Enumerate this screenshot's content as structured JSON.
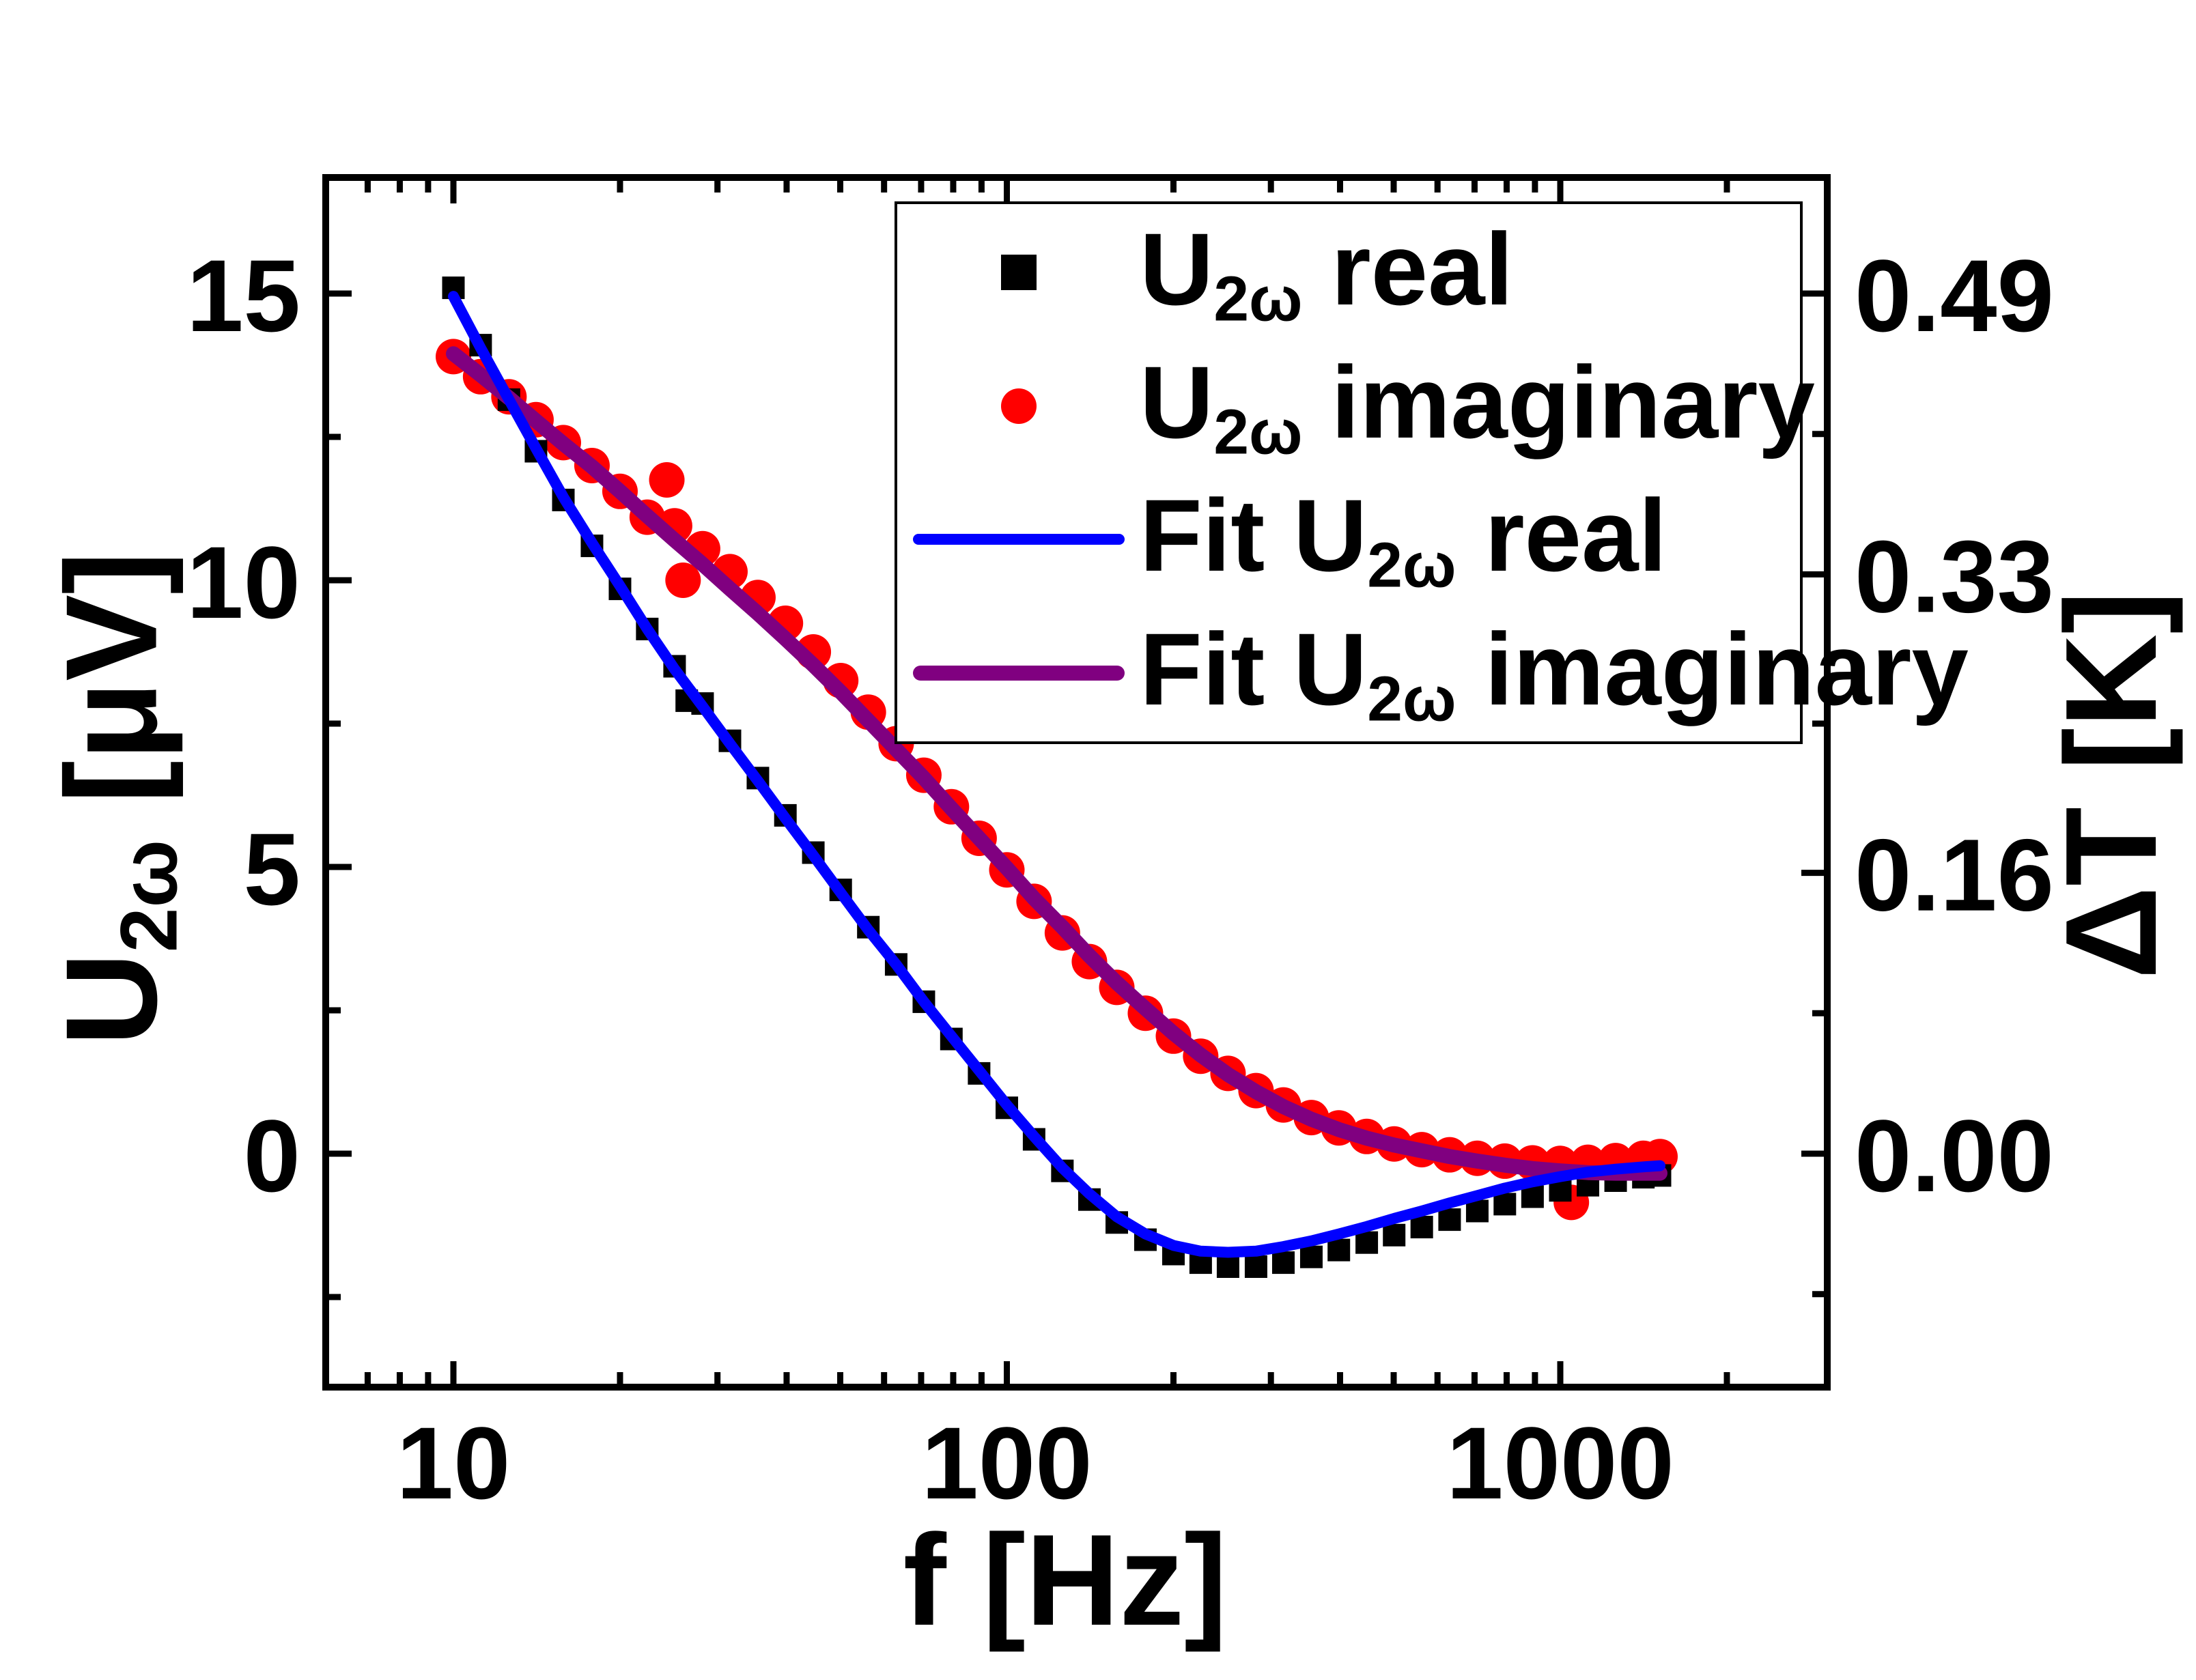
{
  "page": {
    "background": "#FFFFFF"
  },
  "chart_data": {
    "type": "scatter",
    "title": "",
    "x_axis": {
      "label": "f  [Hz]",
      "scale": "log",
      "range": [
        5.9,
        3050
      ],
      "major_ticks": [
        10,
        100,
        1000
      ],
      "major_tick_labels": [
        "10",
        "100",
        "1000"
      ],
      "minor_ticks": [
        7,
        8,
        9,
        20,
        30,
        40,
        50,
        60,
        70,
        80,
        90,
        200,
        300,
        400,
        500,
        600,
        700,
        800,
        900,
        2000
      ]
    },
    "y_axis_left": {
      "label_pre": "U",
      "label_sub": "2ω",
      "label_post": " [μV]",
      "scale": "linear",
      "range": [
        -4.07,
        17.02
      ],
      "major_ticks": [
        0,
        5,
        10,
        15
      ],
      "major_tick_labels": [
        "0",
        "5",
        "10",
        "15"
      ],
      "minor_ticks": [
        -2.5,
        2.5,
        7.5,
        12.5
      ]
    },
    "y_axis_right": {
      "label": "ΔT [K]",
      "scale": "linear",
      "conversion_K_per_uV": 0.03267,
      "major_ticks": [
        0.0,
        0.16,
        0.33,
        0.49
      ],
      "major_tick_labels": [
        "0.00",
        "0.16",
        "0.33",
        "0.49"
      ],
      "minor_ticks": [
        -0.08,
        0.08,
        0.245,
        0.41
      ]
    },
    "grid": "off",
    "legend_position": "top-right-inside",
    "series": [
      {
        "name": "U2w real data",
        "type": "scatter",
        "marker": "square",
        "color": "#000000",
        "marker_size": 33,
        "points": [
          [
            10.0,
            15.1
          ],
          [
            11.2,
            14.1
          ],
          [
            12.6,
            13.15
          ],
          [
            14.1,
            12.25
          ],
          [
            15.8,
            11.4
          ],
          [
            17.8,
            10.6
          ],
          [
            20.0,
            9.85
          ],
          [
            22.4,
            9.15
          ],
          [
            25.1,
            8.5
          ],
          [
            26.4,
            7.9
          ],
          [
            28.2,
            7.85
          ],
          [
            31.6,
            7.2
          ],
          [
            35.5,
            6.55
          ],
          [
            39.8,
            5.9
          ],
          [
            44.7,
            5.25
          ],
          [
            50.1,
            4.6
          ],
          [
            56.2,
            3.95
          ],
          [
            63.1,
            3.3
          ],
          [
            70.8,
            2.65
          ],
          [
            79.4,
            2.0
          ],
          [
            89.1,
            1.4
          ],
          [
            100,
            0.8
          ],
          [
            112,
            0.25
          ],
          [
            126,
            -0.3
          ],
          [
            141,
            -0.8
          ],
          [
            158,
            -1.2
          ],
          [
            178,
            -1.5
          ],
          [
            200,
            -1.75
          ],
          [
            224,
            -1.9
          ],
          [
            251,
            -1.97
          ],
          [
            282,
            -1.97
          ],
          [
            316,
            -1.9
          ],
          [
            355,
            -1.8
          ],
          [
            398,
            -1.68
          ],
          [
            447,
            -1.55
          ],
          [
            501,
            -1.42
          ],
          [
            562,
            -1.28
          ],
          [
            631,
            -1.15
          ],
          [
            708,
            -1.0
          ],
          [
            794,
            -0.88
          ],
          [
            891,
            -0.75
          ],
          [
            1000,
            -0.64
          ],
          [
            1122,
            -0.55
          ],
          [
            1259,
            -0.47
          ],
          [
            1413,
            -0.41
          ],
          [
            1514,
            -0.38
          ]
        ]
      },
      {
        "name": "U2w imaginary data",
        "type": "scatter",
        "marker": "circle",
        "color": "#FF0000",
        "marker_size": 52,
        "points": [
          [
            10.0,
            13.9
          ],
          [
            11.2,
            13.55
          ],
          [
            12.6,
            13.2
          ],
          [
            14.1,
            12.8
          ],
          [
            15.8,
            12.4
          ],
          [
            17.8,
            12.0
          ],
          [
            20.0,
            11.55
          ],
          [
            22.4,
            11.1
          ],
          [
            24.3,
            11.75
          ],
          [
            25.1,
            10.95
          ],
          [
            26.0,
            10.0
          ],
          [
            28.2,
            10.55
          ],
          [
            31.6,
            10.15
          ],
          [
            35.5,
            9.7
          ],
          [
            39.8,
            9.25
          ],
          [
            44.7,
            8.75
          ],
          [
            50.1,
            8.25
          ],
          [
            56.2,
            7.7
          ],
          [
            63.1,
            7.15
          ],
          [
            70.8,
            6.6
          ],
          [
            79.4,
            6.05
          ],
          [
            89.1,
            5.5
          ],
          [
            100,
            4.95
          ],
          [
            112,
            4.4
          ],
          [
            126,
            3.85
          ],
          [
            141,
            3.35
          ],
          [
            158,
            2.9
          ],
          [
            178,
            2.45
          ],
          [
            200,
            2.05
          ],
          [
            224,
            1.7
          ],
          [
            251,
            1.4
          ],
          [
            282,
            1.1
          ],
          [
            316,
            0.85
          ],
          [
            355,
            0.63
          ],
          [
            398,
            0.45
          ],
          [
            447,
            0.3
          ],
          [
            501,
            0.17
          ],
          [
            562,
            0.07
          ],
          [
            631,
            -0.02
          ],
          [
            708,
            -0.08
          ],
          [
            794,
            -0.13
          ],
          [
            891,
            -0.16
          ],
          [
            1000,
            -0.17
          ],
          [
            1047,
            -0.85
          ],
          [
            1122,
            -0.15
          ],
          [
            1259,
            -0.12
          ],
          [
            1413,
            -0.08
          ],
          [
            1514,
            -0.05
          ]
        ]
      },
      {
        "name": "Fit U2w imaginary",
        "type": "line",
        "color": "#800080",
        "line_width": 22,
        "points": [
          [
            10.0,
            13.95
          ],
          [
            11.2,
            13.58
          ],
          [
            12.6,
            13.18
          ],
          [
            14.1,
            12.78
          ],
          [
            15.8,
            12.38
          ],
          [
            17.8,
            11.98
          ],
          [
            20.0,
            11.55
          ],
          [
            22.4,
            11.12
          ],
          [
            25.1,
            10.7
          ],
          [
            28.2,
            10.28
          ],
          [
            31.6,
            9.85
          ],
          [
            35.5,
            9.42
          ],
          [
            39.8,
            8.98
          ],
          [
            44.7,
            8.52
          ],
          [
            50.1,
            8.05
          ],
          [
            56.2,
            7.55
          ],
          [
            63.1,
            7.05
          ],
          [
            70.8,
            6.55
          ],
          [
            79.4,
            6.02
          ],
          [
            89.1,
            5.5
          ],
          [
            100,
            4.98
          ],
          [
            112,
            4.45
          ],
          [
            126,
            3.95
          ],
          [
            141,
            3.45
          ],
          [
            158,
            2.98
          ],
          [
            178,
            2.53
          ],
          [
            200,
            2.1
          ],
          [
            224,
            1.72
          ],
          [
            251,
            1.38
          ],
          [
            282,
            1.08
          ],
          [
            316,
            0.82
          ],
          [
            355,
            0.6
          ],
          [
            398,
            0.42
          ],
          [
            447,
            0.27
          ],
          [
            501,
            0.15
          ],
          [
            562,
            0.05
          ],
          [
            631,
            -0.05
          ],
          [
            708,
            -0.13
          ],
          [
            794,
            -0.2
          ],
          [
            891,
            -0.26
          ],
          [
            1000,
            -0.3
          ],
          [
            1122,
            -0.33
          ],
          [
            1259,
            -0.34
          ],
          [
            1413,
            -0.34
          ],
          [
            1514,
            -0.34
          ]
        ]
      },
      {
        "name": "Fit U2w real",
        "type": "line",
        "color": "#0000FF",
        "line_width": 16,
        "points": [
          [
            10.0,
            14.95
          ],
          [
            11.2,
            14.05
          ],
          [
            12.6,
            13.15
          ],
          [
            14.1,
            12.3
          ],
          [
            15.8,
            11.45
          ],
          [
            17.8,
            10.65
          ],
          [
            20.0,
            9.9
          ],
          [
            22.4,
            9.15
          ],
          [
            25.1,
            8.45
          ],
          [
            28.2,
            7.8
          ],
          [
            31.6,
            7.15
          ],
          [
            35.5,
            6.5
          ],
          [
            39.8,
            5.85
          ],
          [
            44.7,
            5.2
          ],
          [
            50.1,
            4.55
          ],
          [
            56.2,
            3.9
          ],
          [
            63.1,
            3.3
          ],
          [
            70.8,
            2.65
          ],
          [
            79.4,
            2.05
          ],
          [
            89.1,
            1.45
          ],
          [
            100,
            0.85
          ],
          [
            112,
            0.3
          ],
          [
            126,
            -0.25
          ],
          [
            141,
            -0.7
          ],
          [
            158,
            -1.1
          ],
          [
            178,
            -1.4
          ],
          [
            200,
            -1.6
          ],
          [
            224,
            -1.7
          ],
          [
            251,
            -1.72
          ],
          [
            282,
            -1.7
          ],
          [
            316,
            -1.62
          ],
          [
            355,
            -1.52
          ],
          [
            398,
            -1.4
          ],
          [
            447,
            -1.27
          ],
          [
            501,
            -1.13
          ],
          [
            562,
            -1.0
          ],
          [
            631,
            -0.86
          ],
          [
            708,
            -0.73
          ],
          [
            794,
            -0.6
          ],
          [
            891,
            -0.49
          ],
          [
            1000,
            -0.4
          ],
          [
            1122,
            -0.32
          ],
          [
            1259,
            -0.27
          ],
          [
            1413,
            -0.23
          ],
          [
            1514,
            -0.21
          ]
        ]
      }
    ],
    "legend": {
      "items": [
        {
          "pre": "U",
          "sub": "2ω",
          "post": " real",
          "marker": "square",
          "series": 0
        },
        {
          "pre": "U",
          "sub": "2ω",
          "post": " imaginary",
          "marker": "circle",
          "series": 1
        },
        {
          "pre": "Fit U",
          "sub": "2ω",
          "post": " real",
          "marker": "line",
          "series": 3
        },
        {
          "pre": "Fit U",
          "sub": "2ω",
          "post": " imaginary",
          "marker": "line",
          "series": 2
        }
      ]
    }
  }
}
